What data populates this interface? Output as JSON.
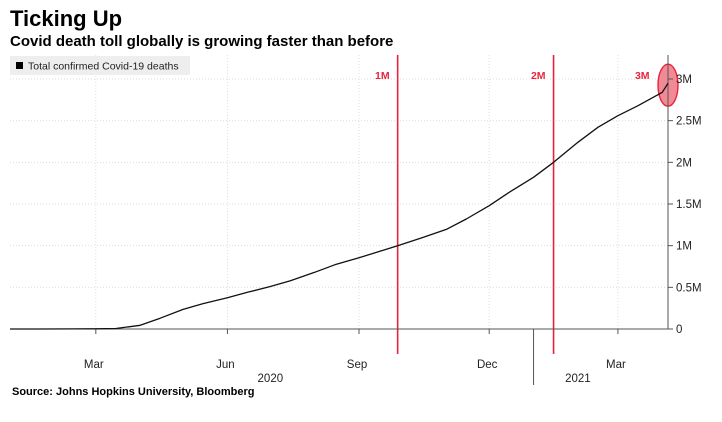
{
  "header": {
    "title": "Ticking Up",
    "subtitle": "Covid death toll globally is growing faster than before"
  },
  "footer": {
    "source": "Source: Johns Hopkins University, Bloomberg"
  },
  "colors": {
    "line": "#111111",
    "marker": "#e8243c",
    "marker_fill": "#f28a96",
    "grid": "#dddddd",
    "axis": "#555555"
  },
  "chart_data": {
    "type": "line",
    "title": "Ticking Up",
    "subtitle": "Covid death toll globally is growing faster than before",
    "legend": "Total confirmed Covid-19 deaths",
    "legend_position": "top-left",
    "grid": true,
    "y_axis_position": "right",
    "ylim": [
      0,
      3000000
    ],
    "y_ticks": [
      {
        "value": 0,
        "label": "0"
      },
      {
        "value": 500000,
        "label": "0.5M"
      },
      {
        "value": 1000000,
        "label": "1M"
      },
      {
        "value": 1500000,
        "label": "1.5M"
      },
      {
        "value": 2000000,
        "label": "2M"
      },
      {
        "value": 2500000,
        "label": "2.5M"
      },
      {
        "value": 3000000,
        "label": "3M"
      }
    ],
    "xlim": [
      "2020-01-01",
      "2021-04-05"
    ],
    "x_ticks": [
      {
        "date": "2020-03-01",
        "label": "Mar"
      },
      {
        "date": "2020-06-01",
        "label": "Jun"
      },
      {
        "date": "2020-09-01",
        "label": "Sep"
      },
      {
        "date": "2020-12-01",
        "label": "Dec"
      },
      {
        "date": "2021-03-01",
        "label": "Mar"
      }
    ],
    "year_labels": [
      {
        "date": "2020-07-01",
        "label": "2020"
      },
      {
        "date": "2021-02-01",
        "label": "2021"
      }
    ],
    "year_dividers": [
      "2021-01-01"
    ],
    "series": [
      {
        "name": "Total confirmed Covid-19 deaths",
        "points": [
          {
            "date": "2020-01-22",
            "value": 0
          },
          {
            "date": "2020-02-15",
            "value": 1500
          },
          {
            "date": "2020-03-01",
            "value": 3000
          },
          {
            "date": "2020-03-15",
            "value": 6500
          },
          {
            "date": "2020-04-01",
            "value": 45000
          },
          {
            "date": "2020-04-15",
            "value": 130000
          },
          {
            "date": "2020-05-01",
            "value": 235000
          },
          {
            "date": "2020-05-15",
            "value": 305000
          },
          {
            "date": "2020-06-01",
            "value": 375000
          },
          {
            "date": "2020-06-15",
            "value": 440000
          },
          {
            "date": "2020-07-01",
            "value": 510000
          },
          {
            "date": "2020-07-15",
            "value": 580000
          },
          {
            "date": "2020-08-01",
            "value": 680000
          },
          {
            "date": "2020-08-15",
            "value": 770000
          },
          {
            "date": "2020-09-01",
            "value": 855000
          },
          {
            "date": "2020-09-15",
            "value": 930000
          },
          {
            "date": "2020-09-28",
            "value": 1000000
          },
          {
            "date": "2020-10-15",
            "value": 1095000
          },
          {
            "date": "2020-11-01",
            "value": 1195000
          },
          {
            "date": "2020-11-15",
            "value": 1320000
          },
          {
            "date": "2020-12-01",
            "value": 1480000
          },
          {
            "date": "2020-12-15",
            "value": 1640000
          },
          {
            "date": "2021-01-01",
            "value": 1820000
          },
          {
            "date": "2021-01-15",
            "value": 2000000
          },
          {
            "date": "2021-02-01",
            "value": 2240000
          },
          {
            "date": "2021-02-15",
            "value": 2420000
          },
          {
            "date": "2021-03-01",
            "value": 2560000
          },
          {
            "date": "2021-03-15",
            "value": 2680000
          },
          {
            "date": "2021-04-01",
            "value": 2840000
          },
          {
            "date": "2021-04-05",
            "value": 2950000
          }
        ]
      }
    ],
    "milestones": [
      {
        "date": "2020-09-28",
        "label": "1M"
      },
      {
        "date": "2021-01-15",
        "label": "2M"
      }
    ],
    "annotations": [
      {
        "date": "2021-03-18",
        "label": "3M"
      }
    ],
    "highlight": {
      "date": "2021-04-05",
      "value": 2950000
    }
  }
}
